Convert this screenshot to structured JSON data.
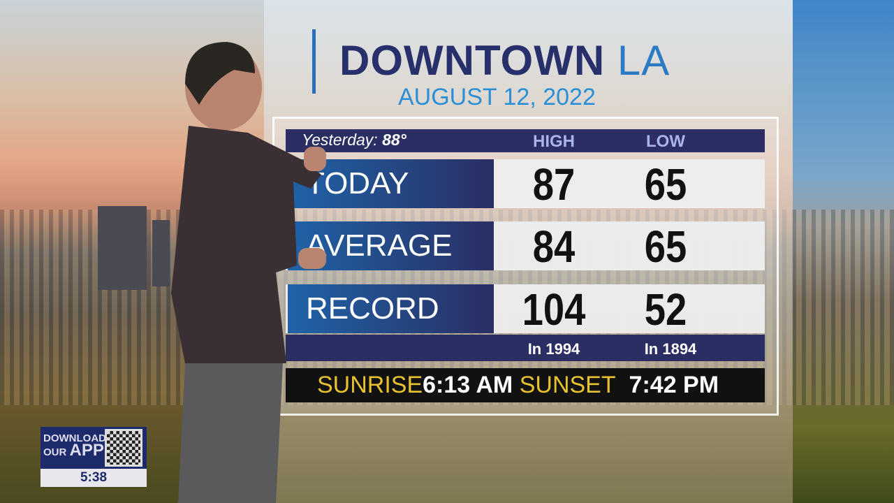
{
  "header": {
    "location": "DOWNTOWN",
    "location_suffix": "LA",
    "date": "AUGUST 12, 2022"
  },
  "table": {
    "yesterday_label": "Yesterday:",
    "yesterday_value": "88°",
    "columns": [
      "HIGH",
      "LOW"
    ],
    "rows": [
      {
        "label": "TODAY",
        "high": "87",
        "low": "65"
      },
      {
        "label": "AVERAGE",
        "high": "84",
        "low": "65"
      },
      {
        "label": "RECORD",
        "high": "104",
        "low": "52"
      }
    ],
    "record_years": {
      "high": "In 1994",
      "low": "In 1894"
    }
  },
  "sun": {
    "sunrise_label": "SUNRISE",
    "sunrise": "6:13 AM",
    "sunset_label": "SUNSET",
    "sunset": "7:42 PM"
  },
  "app_promo": {
    "line1": "DOWNLOAD",
    "line2": "OUR",
    "line3": "APP",
    "time": "5:38"
  },
  "colors": {
    "navy": "#2a2e63",
    "accent_blue": "#2b7bc4",
    "sun_yellow": "#e8c22e"
  }
}
